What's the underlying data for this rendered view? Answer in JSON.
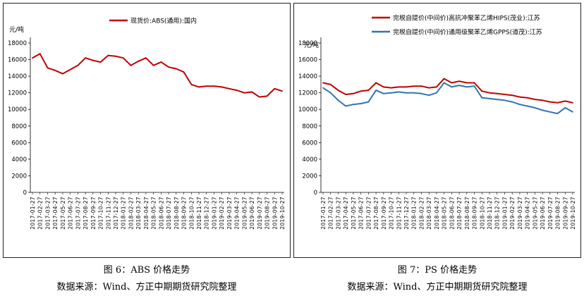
{
  "captions": {
    "left_title": "图 6：ABS 价格走势",
    "left_source": "数据来源：Wind、方正中期期货研究院整理",
    "right_title": "图 7：PS 价格走势",
    "right_source": "数据来源：Wind、方正中期期货研究院整理"
  },
  "chart_data": [
    {
      "type": "line",
      "ylabel": "元/吨",
      "ylim": [
        0,
        18000
      ],
      "yticks": [
        0,
        2000,
        4000,
        6000,
        8000,
        10000,
        12000,
        14000,
        16000,
        18000
      ],
      "legend_position": "top-center",
      "grid": false,
      "categories": [
        "2017-01-27",
        "2017-02-27",
        "2017-03-27",
        "2017-04-27",
        "2017-05-27",
        "2017-06-27",
        "2017-07-27",
        "2017-08-27",
        "2017-09-27",
        "2017-10-27",
        "2017-11-27",
        "2017-12-27",
        "2018-01-27",
        "2018-02-27",
        "2018-03-27",
        "2018-04-27",
        "2018-05-27",
        "2018-06-27",
        "2018-07-27",
        "2018-08-27",
        "2018-09-27",
        "2018-10-27",
        "2018-11-27",
        "2018-12-27",
        "2019-01-27",
        "2019-02-27",
        "2019-03-27",
        "2019-04-27",
        "2019-05-27",
        "2019-06-27",
        "2019-07-27",
        "2019-08-27",
        "2019-09-27",
        "2019-10-27"
      ],
      "series": [
        {
          "name": "现货价:ABS(通用):国内",
          "color": "#c00000",
          "values": [
            16200,
            16700,
            15000,
            14700,
            14300,
            14800,
            15300,
            16200,
            15900,
            15700,
            16500,
            16400,
            16200,
            15300,
            15800,
            16200,
            15300,
            15700,
            15100,
            14900,
            14500,
            13000,
            12700,
            12800,
            12800,
            12700,
            12500,
            12300,
            12000,
            12100,
            11500,
            11600,
            12500,
            12200
          ]
        }
      ]
    },
    {
      "type": "line",
      "ylabel": "元/吨",
      "ylim": [
        0,
        18000
      ],
      "yticks": [
        0,
        2000,
        4000,
        6000,
        8000,
        10000,
        12000,
        14000,
        16000,
        18000
      ],
      "legend_position": "top-center",
      "grid": false,
      "categories": [
        "2017-01-27",
        "2017-02-27",
        "2017-03-27",
        "2017-04-27",
        "2017-05-27",
        "2017-06-27",
        "2017-07-27",
        "2017-08-27",
        "2017-09-27",
        "2017-10-27",
        "2017-11-27",
        "2017-12-27",
        "2018-01-27",
        "2018-02-27",
        "2018-03-27",
        "2018-04-27",
        "2018-05-27",
        "2018-06-27",
        "2018-07-27",
        "2018-08-27",
        "2018-09-27",
        "2018-10-27",
        "2018-11-27",
        "2018-12-27",
        "2019-01-27",
        "2019-02-27",
        "2019-03-27",
        "2019-04-27",
        "2019-05-27",
        "2019-06-27",
        "2019-07-27",
        "2019-08-27",
        "2019-09-27",
        "2019-10-27"
      ],
      "series": [
        {
          "name": "完税自提价(中间价)高抗冲聚苯乙烯HIPS(茂业):江苏",
          "color": "#c00000",
          "values": [
            13200,
            13000,
            12300,
            11800,
            11900,
            12200,
            12300,
            13200,
            12700,
            12600,
            12700,
            12700,
            12800,
            12800,
            12600,
            12700,
            13700,
            13200,
            13400,
            13200,
            13200,
            12200,
            12000,
            11900,
            11800,
            11700,
            11500,
            11400,
            11200,
            11100,
            10900,
            10800,
            11000,
            10800
          ]
        },
        {
          "name": "完税自提价(中间价)通用级聚苯乙烯GPPS(道茂):江苏",
          "color": "#2e75b6",
          "values": [
            12600,
            12000,
            11100,
            10400,
            10600,
            10700,
            10900,
            12300,
            11900,
            12000,
            12100,
            12000,
            12000,
            11900,
            11700,
            12000,
            13200,
            12700,
            12900,
            12700,
            12800,
            11400,
            11300,
            11200,
            11100,
            10900,
            10600,
            10400,
            10200,
            9900,
            9700,
            9500,
            10200,
            9700
          ]
        }
      ]
    }
  ]
}
